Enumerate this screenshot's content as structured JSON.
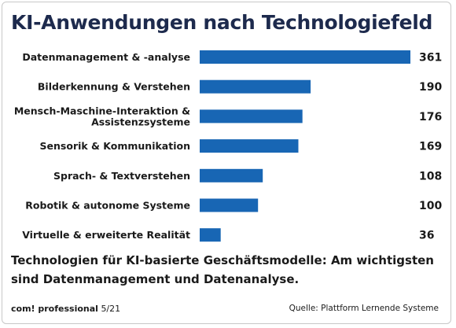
{
  "title": "KI-Anwendungen nach Technologiefeld",
  "subtitle": "Technologien für KI-basierte Geschäftsmodelle: Am wichtigsten sind Datenmanagement und Datenanalyse.",
  "footer": {
    "publisher": "com! professional",
    "issue": "5/21",
    "source": "Quelle: Plattform Lernende Systeme"
  },
  "colors": {
    "bar": "#1866b4",
    "title": "#1d2a4d"
  },
  "chart_data": {
    "type": "bar",
    "orientation": "horizontal",
    "categories": [
      [
        "Datenmanagement & -analyse"
      ],
      [
        "Bilderkennung & Verstehen"
      ],
      [
        "Mensch-Maschine-Interaktion &",
        "Assistenzsysteme"
      ],
      [
        "Sensorik & Kommunikation"
      ],
      [
        "Sprach- & Textverstehen"
      ],
      [
        "Robotik & autonome Systeme"
      ],
      [
        "Virtuelle & erweiterte Realität"
      ]
    ],
    "values": [
      361,
      190,
      176,
      169,
      108,
      100,
      36
    ],
    "value_labels": [
      "361",
      "190",
      "176",
      "169",
      "108",
      "100",
      "36"
    ],
    "xlim": [
      0,
      361
    ],
    "grid": false,
    "legend": "none"
  }
}
